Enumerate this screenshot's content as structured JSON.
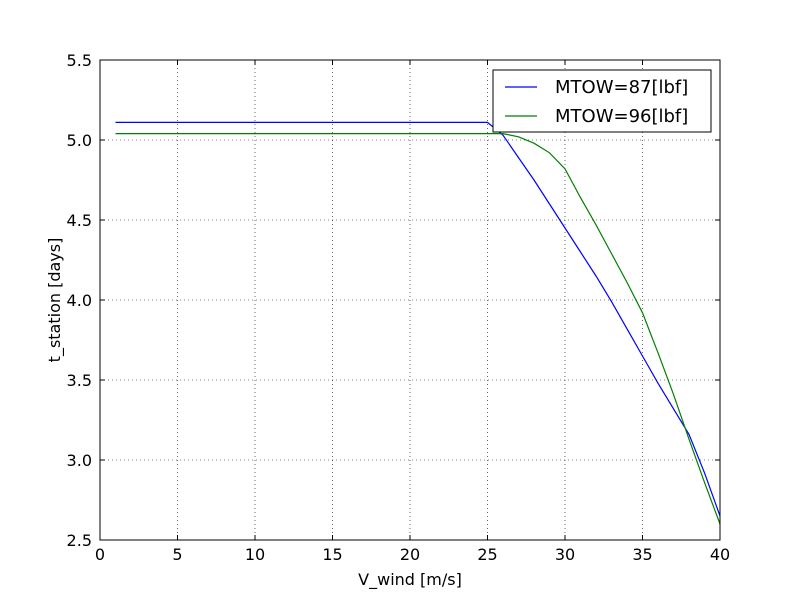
{
  "chart_data": {
    "type": "line",
    "title": "",
    "xlabel": "V_wind [m/s]",
    "ylabel": "t_station [days]",
    "xlim": [
      0,
      40
    ],
    "ylim": [
      2.5,
      5.5
    ],
    "xticks": [
      0,
      5,
      10,
      15,
      20,
      25,
      30,
      35,
      40
    ],
    "yticks": [
      2.5,
      3.0,
      3.5,
      4.0,
      4.5,
      5.0,
      5.5
    ],
    "xtick_labels": [
      "0",
      "5",
      "10",
      "15",
      "20",
      "25",
      "30",
      "35",
      "40"
    ],
    "ytick_labels": [
      "2.5",
      "3.0",
      "3.5",
      "4.0",
      "4.5",
      "5.0",
      "5.5"
    ],
    "grid": true,
    "grid_style": "dotted",
    "legend_position": "top-right",
    "series": [
      {
        "name": "MTOW=87[lbf]",
        "color": "#0000ff",
        "x": [
          1,
          25,
          26,
          27,
          28,
          29,
          30,
          31,
          32,
          33,
          34,
          35,
          36,
          37,
          38,
          39,
          40
        ],
        "y": [
          5.11,
          5.11,
          5.03,
          4.89,
          4.75,
          4.6,
          4.45,
          4.3,
          4.15,
          3.99,
          3.82,
          3.65,
          3.48,
          3.32,
          3.16,
          2.92,
          2.65
        ]
      },
      {
        "name": "MTOW=96[lbf]",
        "color": "#008000",
        "x": [
          1,
          25,
          26,
          27,
          28,
          29,
          30,
          31,
          32,
          33,
          34,
          35,
          36,
          37,
          38,
          39,
          40
        ],
        "y": [
          5.04,
          5.04,
          5.04,
          5.02,
          4.98,
          4.92,
          4.82,
          4.64,
          4.47,
          4.29,
          4.11,
          3.92,
          3.67,
          3.41,
          3.13,
          2.86,
          2.6
        ]
      }
    ]
  }
}
